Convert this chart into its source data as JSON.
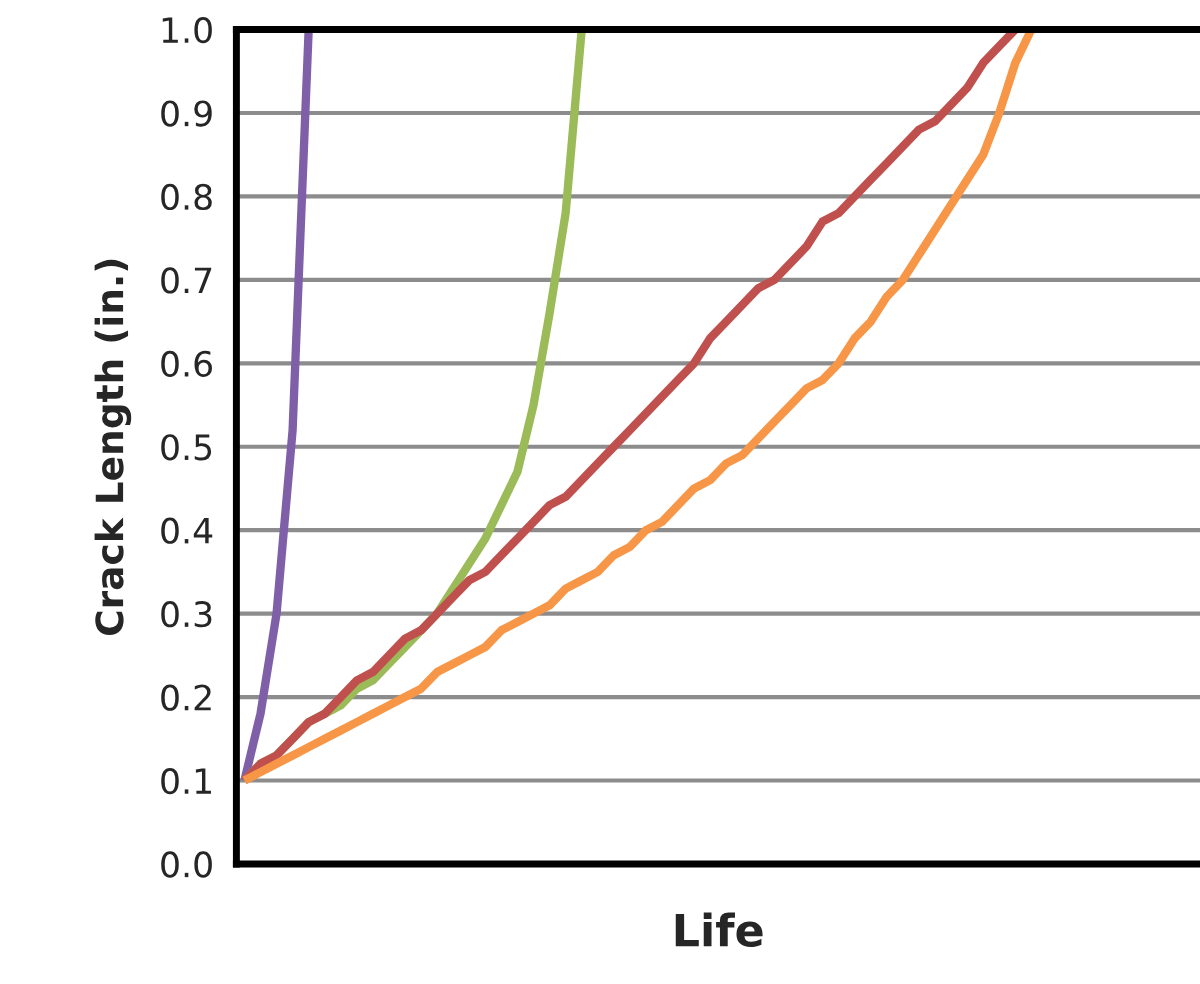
{
  "chart_data": {
    "type": "line",
    "xlabel": "Life",
    "ylabel": "Crack Length (in.)",
    "categories": [
      null,
      null,
      null,
      null,
      null,
      null,
      null,
      null,
      null,
      null,
      null,
      null,
      null,
      null,
      null,
      null,
      null,
      null,
      null,
      null,
      null,
      null,
      null,
      null,
      null,
      null,
      null,
      null,
      null,
      null,
      null,
      null,
      null,
      null,
      null,
      null,
      null,
      null,
      null,
      null,
      null,
      null,
      null,
      null,
      null,
      null,
      null,
      null,
      null,
      null,
      null,
      null,
      null,
      null,
      null,
      null,
      null,
      null,
      null,
      null
    ],
    "series": [
      {
        "color": "#7f60a8",
        "values": [
          0.1,
          0.18,
          0.3,
          0.52,
          1.0,
          null,
          null,
          null,
          null,
          null,
          null,
          null,
          null,
          null,
          null,
          null,
          null,
          null,
          null,
          null,
          null,
          null,
          null,
          null,
          null,
          null,
          null,
          null,
          null,
          null,
          null,
          null,
          null,
          null,
          null,
          null,
          null,
          null,
          null,
          null,
          null,
          null,
          null,
          null,
          null,
          null,
          null,
          null,
          null,
          null,
          null,
          null,
          null,
          null,
          null,
          null,
          null,
          null,
          null,
          null
        ]
      },
      {
        "color": "#9bbb59",
        "values": [
          0.1,
          0.12,
          0.13,
          0.15,
          0.17,
          0.18,
          0.19,
          0.21,
          0.22,
          0.24,
          0.26,
          0.28,
          0.3,
          0.33,
          0.36,
          0.39,
          0.43,
          0.47,
          0.55,
          0.66,
          0.78,
          1.0,
          null,
          null,
          null,
          null,
          null,
          null,
          null,
          null,
          null,
          null,
          null,
          null,
          null,
          null,
          null,
          null,
          null,
          null,
          null,
          null,
          null,
          null,
          null,
          null,
          null,
          null,
          null,
          null,
          null,
          null,
          null,
          null,
          null,
          null,
          null,
          null,
          null,
          null
        ]
      },
      {
        "color": "#c0504d",
        "values": [
          0.1,
          0.12,
          0.13,
          0.15,
          0.17,
          0.18,
          0.2,
          0.22,
          0.23,
          0.25,
          0.27,
          0.28,
          0.3,
          0.32,
          0.34,
          0.35,
          0.37,
          0.39,
          0.41,
          0.43,
          0.44,
          0.46,
          0.48,
          0.5,
          0.52,
          0.54,
          0.56,
          0.58,
          0.6,
          0.63,
          0.65,
          0.67,
          0.69,
          0.7,
          0.72,
          0.74,
          0.77,
          0.78,
          0.8,
          0.82,
          0.84,
          0.86,
          0.88,
          0.89,
          0.91,
          0.93,
          0.96,
          0.98,
          1.0,
          null,
          null,
          null,
          null,
          null,
          null,
          null,
          null,
          null,
          null,
          null
        ]
      },
      {
        "color": "#f79646",
        "values": [
          0.1,
          0.11,
          0.12,
          0.13,
          0.14,
          0.15,
          0.16,
          0.17,
          0.18,
          0.19,
          0.2,
          0.21,
          0.23,
          0.24,
          0.25,
          0.26,
          0.28,
          0.29,
          0.3,
          0.31,
          0.33,
          0.34,
          0.35,
          0.37,
          0.38,
          0.4,
          0.41,
          0.43,
          0.45,
          0.46,
          0.48,
          0.49,
          0.51,
          0.53,
          0.55,
          0.57,
          0.58,
          0.6,
          0.63,
          0.65,
          0.68,
          0.7,
          0.73,
          0.76,
          0.79,
          0.82,
          0.85,
          0.9,
          0.96,
          1.0,
          null,
          null,
          null,
          null,
          null,
          null,
          null,
          null,
          null,
          null
        ]
      }
    ],
    "ylim": [
      0,
      1.0
    ],
    "yticks": [
      {
        "value": 0,
        "label": "0.0"
      },
      {
        "value": 0.1,
        "label": "0.1"
      },
      {
        "value": 0.2,
        "label": "0.2"
      },
      {
        "value": 0.3,
        "label": "0.3"
      },
      {
        "value": 0.4,
        "label": "0.4"
      },
      {
        "value": 0.5,
        "label": "0.5"
      },
      {
        "value": 0.6,
        "label": "0.6"
      },
      {
        "value": 0.7,
        "label": "0.7"
      },
      {
        "value": 0.8,
        "label": "0.8"
      },
      {
        "value": 0.9,
        "label": "0.9"
      },
      {
        "value": 1.0,
        "label": "1.0"
      }
    ],
    "grid": "y",
    "tick_labels": "y",
    "line_style": "solid",
    "marker": "none"
  }
}
